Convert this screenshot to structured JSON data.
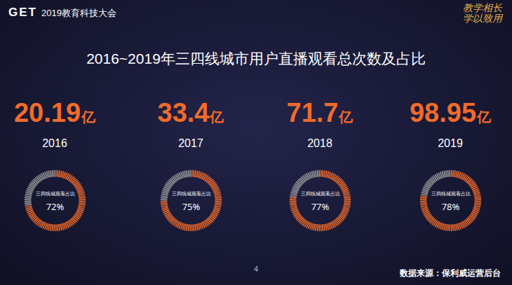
{
  "header": {
    "logo": "GET",
    "event": "2019教育科技大会",
    "slogan": [
      "教学相长",
      "学以致用"
    ]
  },
  "chart_data": {
    "type": "donut",
    "title": "2016~2019年三四线城市用户直播观看总次数及占比",
    "categories": [
      "2016",
      "2017",
      "2018",
      "2019"
    ],
    "totals": [
      20.19,
      33.4,
      71.7,
      98.95
    ],
    "total_unit": "亿",
    "center_label": "三四线城观看占比",
    "values": [
      72,
      75,
      77,
      78
    ],
    "value_labels": [
      "72%",
      "75%",
      "77%",
      "78%"
    ],
    "data_labels": true,
    "color": "#f26b2a"
  },
  "footer": {
    "page": "4",
    "source": "数据来源：保利威运营后台"
  }
}
